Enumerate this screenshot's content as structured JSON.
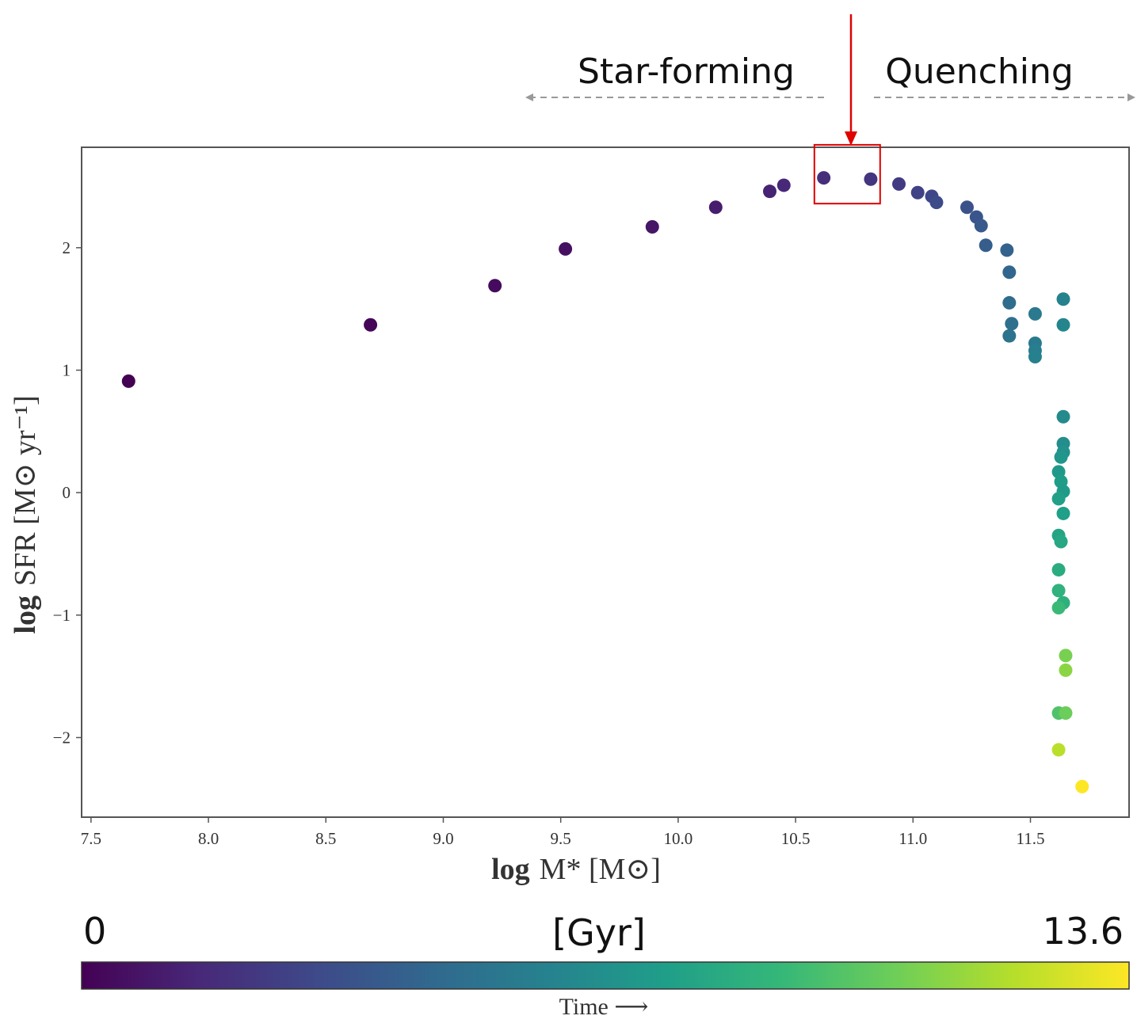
{
  "annotations": {
    "left_label": "Star-forming",
    "right_label": "Quenching"
  },
  "colorbar": {
    "min_label": "0",
    "max_label": "13.6",
    "unit_label": "[Gyr]",
    "caption": "Time ⟶",
    "min": 0,
    "max": 13.6,
    "colormap": "viridis",
    "colors": [
      "#440154",
      "#482878",
      "#3e4989",
      "#31688e",
      "#26828e",
      "#1f9e89",
      "#35b779",
      "#6ece58",
      "#b5de2b",
      "#fde725"
    ]
  },
  "colors": {
    "highlight": "#e00000",
    "guide_arrow": "#999999",
    "axes": "#555555"
  },
  "chart_data": {
    "type": "scatter",
    "title": "",
    "xlabel_bold": "log",
    "xlabel_rest": "M* [M⊙]",
    "ylabel_bold": "log",
    "ylabel_rest": "SFR [M⊙ yr⁻¹]",
    "xlim": [
      7.46,
      11.92
    ],
    "ylim": [
      -2.65,
      2.82
    ],
    "xticks": [
      7.5,
      8.0,
      8.5,
      9.0,
      9.5,
      10.0,
      10.5,
      11.0,
      11.5
    ],
    "xtick_labels": [
      "7.5",
      "8.0",
      "8.5",
      "9.0",
      "9.5",
      "10.0",
      "10.5",
      "11.0",
      "11.5"
    ],
    "yticks": [
      -2,
      -1,
      0,
      1,
      2
    ],
    "ytick_labels": [
      "−2",
      "−1",
      "0",
      "1",
      "2"
    ],
    "grid": false,
    "color_by": "time (Gyr)",
    "highlight_box": {
      "x": [
        10.58,
        10.86
      ],
      "y": [
        2.36,
        2.84
      ]
    },
    "points": [
      {
        "x": 7.66,
        "y": 0.91,
        "t": 0.0
      },
      {
        "x": 8.69,
        "y": 1.37,
        "t": 0.2
      },
      {
        "x": 9.22,
        "y": 1.69,
        "t": 0.4
      },
      {
        "x": 9.52,
        "y": 1.99,
        "t": 0.6
      },
      {
        "x": 9.89,
        "y": 2.17,
        "t": 0.8
      },
      {
        "x": 10.16,
        "y": 2.33,
        "t": 1.1
      },
      {
        "x": 10.39,
        "y": 2.46,
        "t": 1.3
      },
      {
        "x": 10.45,
        "y": 2.51,
        "t": 1.5
      },
      {
        "x": 10.62,
        "y": 2.57,
        "t": 1.8
      },
      {
        "x": 10.82,
        "y": 2.56,
        "t": 2.1
      },
      {
        "x": 10.94,
        "y": 2.52,
        "t": 2.4
      },
      {
        "x": 11.02,
        "y": 2.45,
        "t": 2.7
      },
      {
        "x": 11.08,
        "y": 2.42,
        "t": 2.9
      },
      {
        "x": 11.1,
        "y": 2.37,
        "t": 3.1
      },
      {
        "x": 11.23,
        "y": 2.33,
        "t": 3.4
      },
      {
        "x": 11.27,
        "y": 2.25,
        "t": 3.6
      },
      {
        "x": 11.29,
        "y": 2.18,
        "t": 3.8
      },
      {
        "x": 11.31,
        "y": 2.02,
        "t": 4.0
      },
      {
        "x": 11.4,
        "y": 1.98,
        "t": 4.3
      },
      {
        "x": 11.41,
        "y": 1.8,
        "t": 4.5
      },
      {
        "x": 11.41,
        "y": 1.55,
        "t": 4.8
      },
      {
        "x": 11.42,
        "y": 1.38,
        "t": 5.0
      },
      {
        "x": 11.41,
        "y": 1.28,
        "t": 5.2
      },
      {
        "x": 11.52,
        "y": 1.46,
        "t": 5.5
      },
      {
        "x": 11.52,
        "y": 1.22,
        "t": 5.6
      },
      {
        "x": 11.52,
        "y": 1.16,
        "t": 5.8
      },
      {
        "x": 11.52,
        "y": 1.11,
        "t": 5.9
      },
      {
        "x": 11.64,
        "y": 1.58,
        "t": 6.0
      },
      {
        "x": 11.64,
        "y": 1.37,
        "t": 6.2
      },
      {
        "x": 11.64,
        "y": 0.62,
        "t": 6.5
      },
      {
        "x": 11.64,
        "y": 0.4,
        "t": 6.7
      },
      {
        "x": 11.64,
        "y": 0.33,
        "t": 6.9
      },
      {
        "x": 11.63,
        "y": 0.29,
        "t": 7.1
      },
      {
        "x": 11.62,
        "y": 0.17,
        "t": 7.3
      },
      {
        "x": 11.63,
        "y": 0.09,
        "t": 7.5
      },
      {
        "x": 11.64,
        "y": 0.01,
        "t": 7.4
      },
      {
        "x": 11.62,
        "y": -0.05,
        "t": 7.7
      },
      {
        "x": 11.64,
        "y": -0.17,
        "t": 7.6
      },
      {
        "x": 11.62,
        "y": -0.35,
        "t": 7.9
      },
      {
        "x": 11.63,
        "y": -0.4,
        "t": 8.1
      },
      {
        "x": 11.62,
        "y": -0.63,
        "t": 8.4
      },
      {
        "x": 11.62,
        "y": -0.8,
        "t": 8.7
      },
      {
        "x": 11.64,
        "y": -0.9,
        "t": 8.6
      },
      {
        "x": 11.62,
        "y": -0.94,
        "t": 9.2
      },
      {
        "x": 11.65,
        "y": -1.33,
        "t": 10.8
      },
      {
        "x": 11.65,
        "y": -1.45,
        "t": 11.2
      },
      {
        "x": 11.62,
        "y": -1.8,
        "t": 9.8
      },
      {
        "x": 11.65,
        "y": -1.8,
        "t": 10.5
      },
      {
        "x": 11.62,
        "y": -2.1,
        "t": 12.2
      },
      {
        "x": 11.72,
        "y": -2.4,
        "t": 13.6
      }
    ]
  }
}
